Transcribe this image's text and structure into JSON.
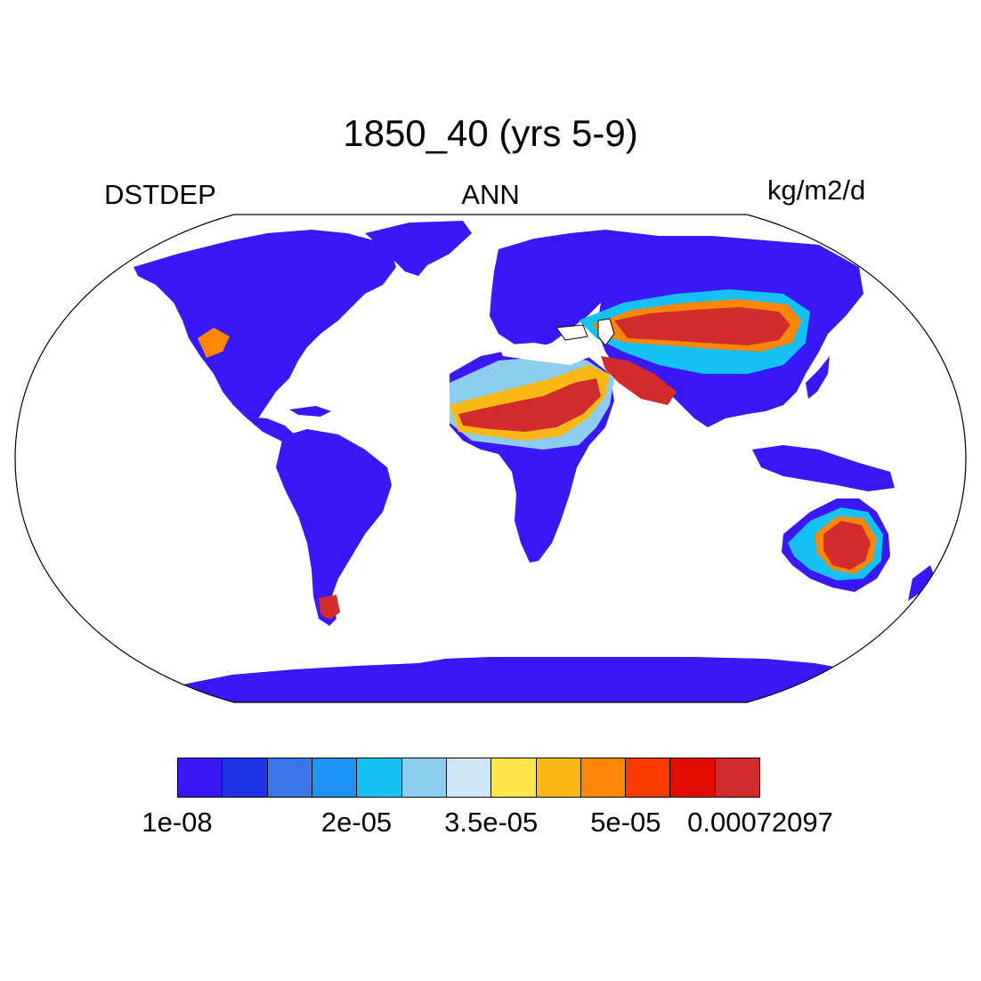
{
  "title": "1850_40 (yrs 5-9)",
  "left_label": "DSTDEP",
  "center_label": "ANN",
  "right_label": "kg/m2/d",
  "colors": {
    "ocean": "#ffffff",
    "coast": "#000000",
    "level_colors": [
      "#3a17f5",
      "#2234e8",
      "#3b76ea",
      "#1d93f6",
      "#15c1f5",
      "#8dcdf0",
      "#cde7f6",
      "#fde64c",
      "#fcb916",
      "#fc8707",
      "#fb3a00",
      "#e10c00",
      "#d22b2b"
    ]
  },
  "colorbar": {
    "labels": [
      {
        "text": "1e-08",
        "boundary": 0
      },
      {
        "text": "2e-05",
        "boundary": 4
      },
      {
        "text": "3.5e-05",
        "boundary": 7
      },
      {
        "text": "5e-05",
        "boundary": 10
      },
      {
        "text": "0.00072097",
        "boundary": 13
      }
    ]
  },
  "map": {
    "projection": "Robinson",
    "regions": [
      {
        "name": "Sahara",
        "level": 12
      },
      {
        "name": "Arabian Peninsula",
        "level": 12
      },
      {
        "name": "Taklamakan-Gobi",
        "level": 12
      },
      {
        "name": "Central Australia",
        "level": 12
      },
      {
        "name": "Patagonia",
        "level": 12
      },
      {
        "name": "US Southwest",
        "level": 9
      }
    ]
  }
}
